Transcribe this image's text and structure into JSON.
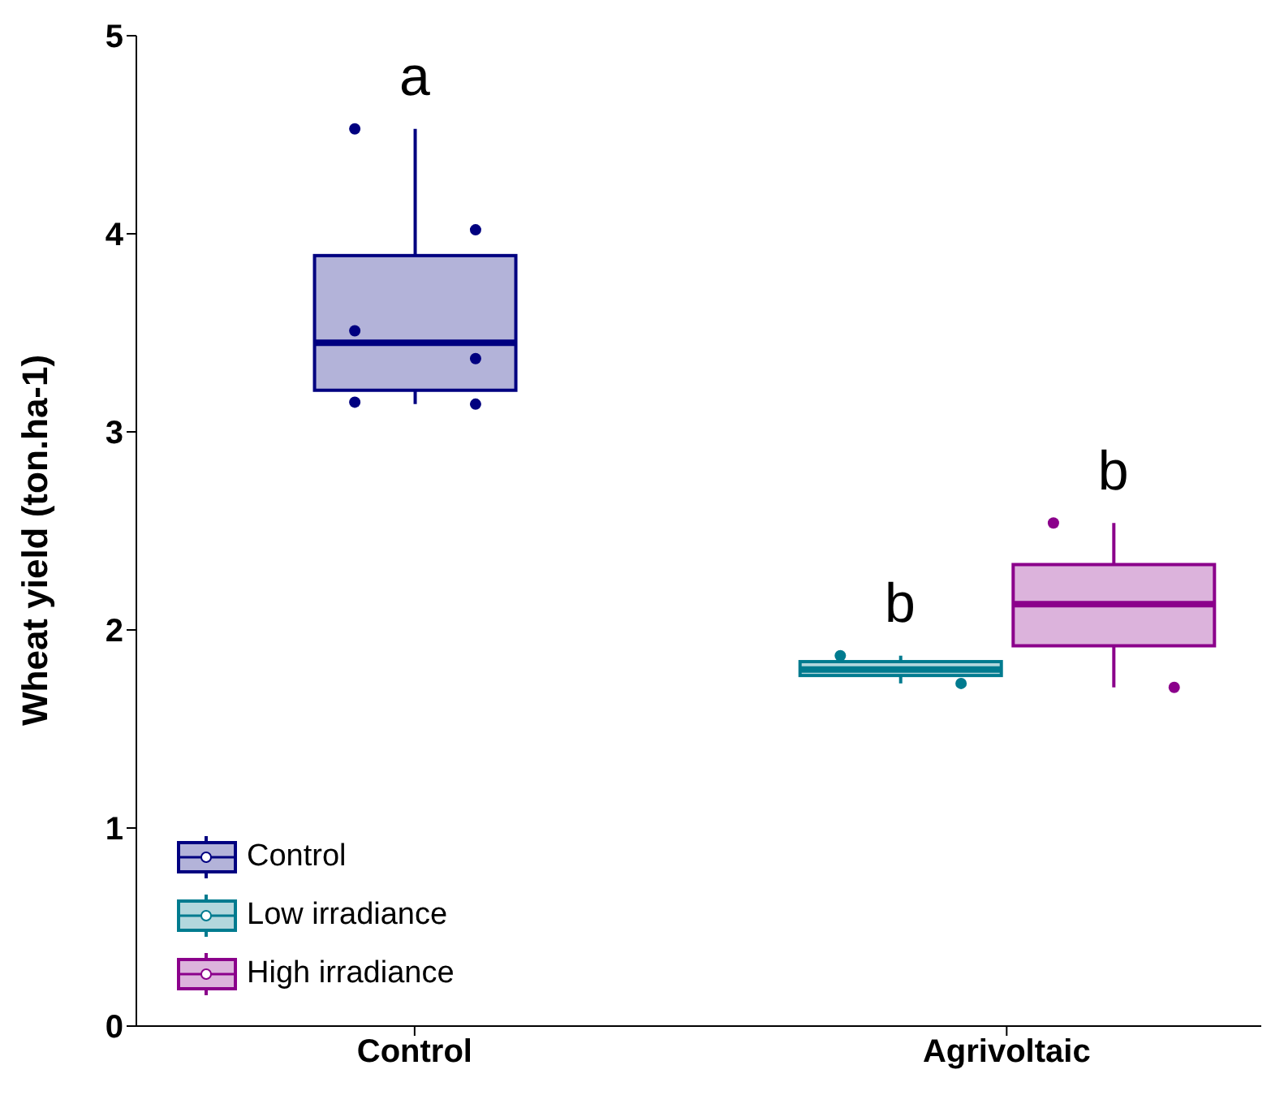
{
  "chart_data": {
    "type": "box",
    "ylabel": "Wheat yield (ton.ha-1)",
    "categories": [
      "Control",
      "Agrivoltaic"
    ],
    "series": [
      {
        "name": "Control",
        "color": "#000080",
        "boxes": [
          {
            "low": 3.14,
            "q1": 3.21,
            "median": 3.45,
            "q3": 3.89,
            "high": 4.53,
            "outliers": [
              4.53,
              4.02,
              3.51,
              3.37,
              3.15,
              3.14
            ]
          },
          null
        ]
      },
      {
        "name": "Low irradiance",
        "color": "#007b8f",
        "boxes": [
          null,
          {
            "low": 1.73,
            "q1": 1.77,
            "median": 1.8,
            "q3": 1.84,
            "high": 1.87,
            "outliers": [
              1.87,
              1.73
            ]
          }
        ]
      },
      {
        "name": "High irradiance",
        "color": "#8b008b",
        "boxes": [
          null,
          {
            "low": 1.71,
            "q1": 1.92,
            "median": 2.13,
            "q3": 2.33,
            "high": 2.54,
            "outliers": [
              2.54,
              1.71
            ]
          }
        ]
      }
    ],
    "annotations": [
      "a",
      "b",
      "b"
    ],
    "ylim": [
      0,
      5
    ],
    "yticks": [
      0,
      1,
      2,
      3,
      4,
      5
    ],
    "grid": false,
    "legend": "bottom left"
  }
}
